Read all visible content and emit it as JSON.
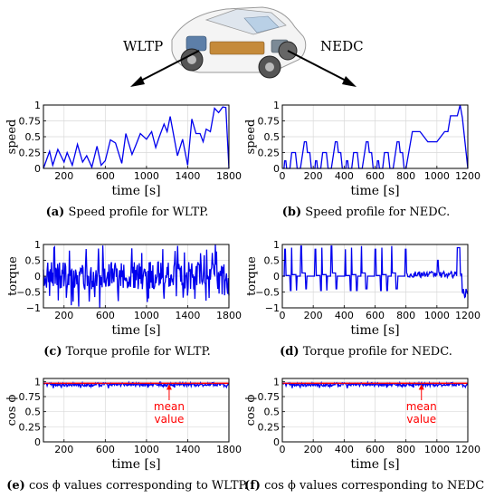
{
  "header": {
    "left_arrow_label": "WLTP",
    "right_arrow_label": "NEDC",
    "car_image": "electric-car-cutaway"
  },
  "colors": {
    "series": "#0000ee",
    "mean": "#ff0000",
    "grid": "#d9d9d9"
  },
  "charts": [
    {
      "id": "a",
      "caption_tag": "(a)",
      "caption_text": "Speed profile for WLTP.",
      "type": "line",
      "ylabel": "speed",
      "xlabel": "time [s]",
      "xlim": [
        0,
        1800
      ],
      "ylim": [
        0,
        1
      ],
      "xticks": [
        200,
        600,
        1000,
        1400,
        1800
      ],
      "xtick_labels": [
        "200",
        "600",
        "1000",
        "1400",
        "1800"
      ],
      "yticks": [
        0,
        0.25,
        0.5,
        0.75,
        1
      ],
      "ytick_labels": [
        "0",
        "0.25",
        "0.5",
        "0.75",
        "1"
      ],
      "pattern": "wltp_speed"
    },
    {
      "id": "b",
      "caption_tag": "(b)",
      "caption_text": "Speed profile for NEDC.",
      "type": "line",
      "ylabel": "speed",
      "xlabel": "time [s]",
      "xlim": [
        0,
        1200
      ],
      "ylim": [
        0,
        1
      ],
      "xticks": [
        0,
        200,
        400,
        600,
        800,
        1000,
        1200
      ],
      "xtick_labels": [
        "0",
        "200",
        "400",
        "600",
        "800",
        "1000",
        "1200"
      ],
      "yticks": [
        0,
        0.25,
        0.5,
        0.75,
        1
      ],
      "ytick_labels": [
        "0",
        "0.25",
        "0.5",
        "0.75",
        "1"
      ],
      "pattern": "nedc_speed"
    },
    {
      "id": "c",
      "caption_tag": "(c)",
      "caption_text": "Torque profile for WLTP.",
      "type": "line",
      "ylabel": "torque",
      "xlabel": "time [s]",
      "xlim": [
        0,
        1800
      ],
      "ylim": [
        -1,
        1
      ],
      "xticks": [
        200,
        600,
        1000,
        1400,
        1800
      ],
      "xtick_labels": [
        "200",
        "600",
        "1000",
        "1400",
        "1800"
      ],
      "yticks": [
        -1,
        -0.5,
        0,
        0.5,
        1
      ],
      "ytick_labels": [
        "−1",
        "−0.5",
        "0",
        "0.5",
        "1"
      ],
      "pattern": "wltp_torque"
    },
    {
      "id": "d",
      "caption_tag": "(d)",
      "caption_text": "Torque profile for NEDC.",
      "type": "line",
      "ylabel": "torque",
      "xlabel": "time [s]",
      "xlim": [
        0,
        1200
      ],
      "ylim": [
        -1,
        1
      ],
      "xticks": [
        0,
        200,
        400,
        600,
        800,
        1000,
        1200
      ],
      "xtick_labels": [
        "0",
        "200",
        "400",
        "600",
        "800",
        "1000",
        "1200"
      ],
      "yticks": [
        -1,
        -0.5,
        0,
        0.5,
        1
      ],
      "ytick_labels": [
        "−1",
        "−0.5",
        "0",
        "0.5",
        "1"
      ],
      "pattern": "nedc_torque"
    },
    {
      "id": "e",
      "caption_tag": "(e)",
      "caption_text": "cos ϕ values corresponding to WLTP.",
      "type": "line",
      "ylabel": "cos ϕ",
      "xlabel": "time [s]",
      "xlim": [
        0,
        1800
      ],
      "ylim": [
        0,
        1.05
      ],
      "xticks": [
        200,
        600,
        1000,
        1400,
        1800
      ],
      "xtick_labels": [
        "200",
        "600",
        "1000",
        "1400",
        "1800"
      ],
      "yticks": [
        0,
        0.25,
        0.5,
        0.75,
        1
      ],
      "ytick_labels": [
        "0",
        "0.25",
        "0.5",
        "0.75",
        "1"
      ],
      "pattern": "wltp_cos",
      "mean_value": 0.97,
      "annotation": {
        "text_line1": "mean",
        "text_line2": "value",
        "x": 1220
      }
    },
    {
      "id": "f",
      "caption_tag": "(f)",
      "caption_text": "cos ϕ values corresponding to NEDC.",
      "type": "line",
      "ylabel": "cos ϕ",
      "xlabel": "time [s]",
      "xlim": [
        0,
        1200
      ],
      "ylim": [
        0,
        1.05
      ],
      "xticks": [
        0,
        200,
        400,
        600,
        800,
        1000,
        1200
      ],
      "xtick_labels": [
        "0",
        "200",
        "400",
        "600",
        "800",
        "1000",
        "1200"
      ],
      "yticks": [
        0,
        0.25,
        0.5,
        0.75,
        1
      ],
      "ytick_labels": [
        "0",
        "0.25",
        "0.5",
        "0.75",
        "1"
      ],
      "pattern": "nedc_cos",
      "mean_value": 0.97,
      "annotation": {
        "text_line1": "mean",
        "text_line2": "value",
        "x": 900
      }
    }
  ],
  "chart_data": [
    {
      "type": "line",
      "ylabel": "speed",
      "xlabel": "time [s]",
      "xlim": [
        0,
        1800
      ],
      "ylim": [
        0,
        1
      ],
      "x": [
        0,
        60,
        90,
        140,
        200,
        230,
        280,
        330,
        380,
        420,
        470,
        520,
        560,
        600,
        650,
        700,
        760,
        800,
        860,
        900,
        940,
        1000,
        1050,
        1090,
        1120,
        1170,
        1200,
        1230,
        1300,
        1350,
        1400,
        1440,
        1480,
        1520,
        1550,
        1580,
        1620,
        1660,
        1700,
        1740,
        1770,
        1800
      ],
      "values": [
        0,
        0.27,
        0.05,
        0.3,
        0.1,
        0.25,
        0.05,
        0.38,
        0.1,
        0.2,
        0.02,
        0.35,
        0.05,
        0.12,
        0.45,
        0.4,
        0.08,
        0.55,
        0.22,
        0.38,
        0.55,
        0.46,
        0.58,
        0.33,
        0.48,
        0.7,
        0.58,
        0.82,
        0.2,
        0.46,
        0.05,
        0.78,
        0.55,
        0.55,
        0.42,
        0.62,
        0.58,
        0.95,
        0.88,
        0.97,
        0.96,
        0
      ],
      "grid": true
    },
    {
      "type": "line",
      "ylabel": "speed",
      "xlabel": "time [s]",
      "xlim": [
        0,
        1200
      ],
      "ylim": [
        0,
        1
      ],
      "x": [
        0,
        11,
        15,
        23,
        28,
        49,
        61,
        85,
        96,
        112,
        117,
        143,
        155,
        163,
        178,
        188,
        195,
        200,
        211,
        215,
        223,
        228,
        249,
        261,
        285,
        296,
        312,
        317,
        343,
        355,
        363,
        378,
        388,
        395,
        400,
        411,
        415,
        423,
        428,
        449,
        461,
        485,
        496,
        512,
        517,
        543,
        555,
        563,
        578,
        588,
        595,
        600,
        611,
        615,
        623,
        628,
        649,
        661,
        685,
        696,
        712,
        717,
        743,
        755,
        763,
        778,
        788,
        795,
        800,
        841,
        891,
        941,
        1000,
        1050,
        1071,
        1088,
        1118,
        1132,
        1150,
        1165,
        1200
      ],
      "values": [
        0,
        0,
        0.12,
        0.12,
        0,
        0,
        0.25,
        0.25,
        0,
        0,
        0,
        0.42,
        0.42,
        0.25,
        0.25,
        0,
        0,
        0,
        0,
        0.12,
        0.12,
        0,
        0,
        0.25,
        0.25,
        0,
        0,
        0,
        0.42,
        0.42,
        0.25,
        0.25,
        0,
        0,
        0,
        0,
        0.12,
        0.12,
        0,
        0,
        0.25,
        0.25,
        0,
        0,
        0,
        0.42,
        0.42,
        0.25,
        0.25,
        0,
        0,
        0,
        0,
        0.12,
        0.12,
        0,
        0,
        0.25,
        0.25,
        0,
        0,
        0,
        0.42,
        0.42,
        0.25,
        0.25,
        0,
        0,
        0,
        0.58,
        0.58,
        0.42,
        0.42,
        0.58,
        0.58,
        0.83,
        0.83,
        0.83,
        1,
        0.8,
        0
      ],
      "grid": true
    },
    {
      "type": "line",
      "ylabel": "torque",
      "xlabel": "time [s]",
      "xlim": [
        0,
        1800
      ],
      "ylim": [
        -1,
        1
      ],
      "description_points": "dense oscillating profile between -1 and 1",
      "grid": true
    },
    {
      "type": "line",
      "ylabel": "torque",
      "xlabel": "time [s]",
      "xlim": [
        0,
        1200
      ],
      "ylim": [
        -1,
        1
      ],
      "description_points": "repeated step profile with spikes at accelerations",
      "grid": true
    },
    {
      "type": "line",
      "ylabel": "cos ϕ",
      "xlabel": "time [s]",
      "xlim": [
        0,
        1800
      ],
      "ylim": [
        0,
        1.05
      ],
      "mean": 0.97,
      "grid": true
    },
    {
      "type": "line",
      "ylabel": "cos ϕ",
      "xlabel": "time [s]",
      "xlim": [
        0,
        1200
      ],
      "ylim": [
        0,
        1.05
      ],
      "mean": 0.97,
      "grid": true
    }
  ]
}
